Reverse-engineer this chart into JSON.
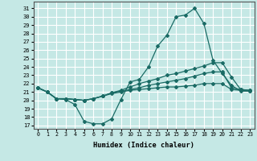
{
  "xlabel": "Humidex (Indice chaleur)",
  "bg_color": "#c5e8e5",
  "line_color": "#1a6b65",
  "grid_color": "#ffffff",
  "xlim": [
    -0.5,
    23.5
  ],
  "ylim": [
    16.6,
    31.8
  ],
  "yticks": [
    17,
    18,
    19,
    20,
    21,
    22,
    23,
    24,
    25,
    26,
    27,
    28,
    29,
    30,
    31
  ],
  "xticks": [
    0,
    1,
    2,
    3,
    4,
    5,
    6,
    7,
    8,
    9,
    10,
    11,
    12,
    13,
    14,
    15,
    16,
    17,
    18,
    19,
    20,
    21,
    22,
    23
  ],
  "hours": [
    0,
    1,
    2,
    3,
    4,
    5,
    6,
    7,
    8,
    9,
    10,
    11,
    12,
    13,
    14,
    15,
    16,
    17,
    18,
    19,
    20,
    21,
    22,
    23
  ],
  "line1": [
    21.5,
    21.0,
    20.2,
    20.1,
    19.5,
    17.5,
    17.2,
    17.2,
    17.8,
    20.1,
    22.2,
    22.5,
    24.0,
    26.5,
    27.8,
    30.0,
    30.2,
    31.0,
    29.2,
    24.8,
    23.2,
    21.8,
    21.1,
    21.1
  ],
  "line2": [
    21.5,
    21.0,
    20.2,
    20.2,
    20.1,
    20.0,
    20.2,
    20.5,
    20.9,
    21.2,
    21.6,
    22.0,
    22.3,
    22.6,
    23.0,
    23.2,
    23.5,
    23.8,
    24.1,
    24.5,
    24.5,
    22.8,
    21.3,
    21.2
  ],
  "line3": [
    21.5,
    21.0,
    20.2,
    20.2,
    20.1,
    20.0,
    20.2,
    20.5,
    20.8,
    21.0,
    21.2,
    21.3,
    21.4,
    21.5,
    21.6,
    21.6,
    21.7,
    21.8,
    22.0,
    22.0,
    22.0,
    21.3,
    21.2,
    21.1
  ],
  "line4": [
    21.5,
    21.0,
    20.2,
    20.2,
    20.1,
    20.0,
    20.2,
    20.5,
    20.9,
    21.1,
    21.3,
    21.5,
    21.8,
    22.0,
    22.2,
    22.4,
    22.6,
    22.9,
    23.2,
    23.4,
    23.4,
    21.5,
    21.3,
    21.2
  ]
}
